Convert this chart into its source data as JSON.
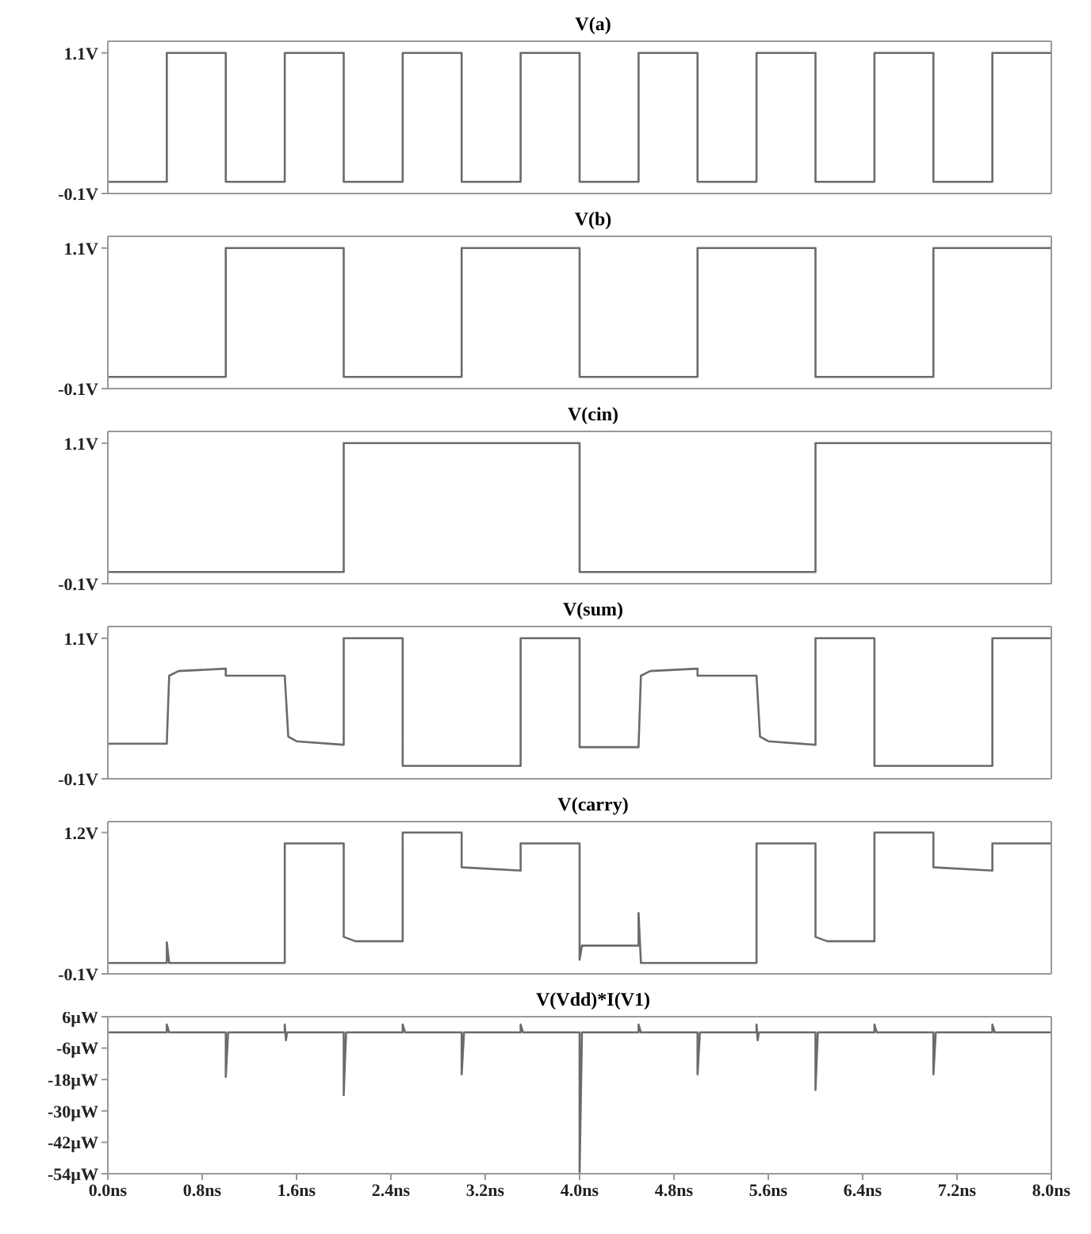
{
  "chart_data": [
    {
      "type": "line",
      "title": "V(a)",
      "xlim": [
        0,
        8
      ],
      "ylim": [
        -0.1,
        1.2
      ],
      "yticks": [
        {
          "value": 1.1,
          "label": "1.1V"
        },
        {
          "value": -0.1,
          "label": "-0.1V"
        }
      ],
      "tick_labels": "y",
      "series": [
        {
          "color": "#6b6b6b",
          "x": [
            0,
            0.5,
            0.5,
            1,
            1,
            1.5,
            1.5,
            2,
            2,
            2.5,
            2.5,
            3,
            3,
            3.5,
            3.5,
            4,
            4,
            4.5,
            4.5,
            5,
            5,
            5.5,
            5.5,
            6,
            6,
            6.5,
            6.5,
            7,
            7,
            7.5,
            7.5,
            8
          ],
          "values": [
            0,
            0,
            1.1,
            1.1,
            0,
            0,
            1.1,
            1.1,
            0,
            0,
            1.1,
            1.1,
            0,
            0,
            1.1,
            1.1,
            0,
            0,
            1.1,
            1.1,
            0,
            0,
            1.1,
            1.1,
            0,
            0,
            1.1,
            1.1,
            0,
            0,
            1.1,
            1.1
          ]
        }
      ]
    },
    {
      "type": "line",
      "title": "V(b)",
      "xlim": [
        0,
        8
      ],
      "ylim": [
        -0.1,
        1.2
      ],
      "yticks": [
        {
          "value": 1.1,
          "label": "1.1V"
        },
        {
          "value": -0.1,
          "label": "-0.1V"
        }
      ],
      "tick_labels": "y",
      "series": [
        {
          "color": "#6b6b6b",
          "x": [
            0,
            1,
            1,
            2,
            2,
            3,
            3,
            4,
            4,
            5,
            5,
            6,
            6,
            7,
            7,
            8
          ],
          "values": [
            0,
            0,
            1.1,
            1.1,
            0,
            0,
            1.1,
            1.1,
            0,
            0,
            1.1,
            1.1,
            0,
            0,
            1.1,
            1.1
          ]
        }
      ]
    },
    {
      "type": "line",
      "title": "V(cin)",
      "xlim": [
        0,
        8
      ],
      "ylim": [
        -0.1,
        1.2
      ],
      "yticks": [
        {
          "value": 1.1,
          "label": "1.1V"
        },
        {
          "value": -0.1,
          "label": "-0.1V"
        }
      ],
      "tick_labels": "y",
      "series": [
        {
          "color": "#6b6b6b",
          "x": [
            0,
            2,
            2,
            4,
            4,
            6,
            6,
            8
          ],
          "values": [
            0,
            0,
            1.1,
            1.1,
            0,
            0,
            1.1,
            1.1
          ]
        }
      ]
    },
    {
      "type": "line",
      "title": "V(sum)",
      "xlim": [
        0,
        8
      ],
      "ylim": [
        -0.1,
        1.2
      ],
      "yticks": [
        {
          "value": 1.1,
          "label": "1.1V"
        },
        {
          "value": -0.1,
          "label": "-0.1V"
        }
      ],
      "tick_labels": "y",
      "series": [
        {
          "color": "#6b6b6b",
          "x": [
            0,
            0.5,
            0.52,
            0.6,
            1.0,
            1.0,
            1.5,
            1.53,
            1.6,
            2.0,
            2.0,
            2.5,
            2.5,
            3.5,
            3.5,
            4.0,
            4.0,
            4.5,
            4.52,
            4.6,
            5.0,
            5.0,
            5.5,
            5.53,
            5.6,
            6.0,
            6.0,
            6.5,
            6.5,
            7.5,
            7.5,
            8
          ],
          "values": [
            0.2,
            0.2,
            0.78,
            0.82,
            0.84,
            0.78,
            0.78,
            0.26,
            0.22,
            0.19,
            1.1,
            1.1,
            0.01,
            0.01,
            1.1,
            1.1,
            0.17,
            0.17,
            0.78,
            0.82,
            0.84,
            0.78,
            0.78,
            0.26,
            0.22,
            0.19,
            1.1,
            1.1,
            0.01,
            0.01,
            1.1,
            1.1
          ]
        }
      ]
    },
    {
      "type": "line",
      "title": "V(carry)",
      "xlim": [
        0,
        8
      ],
      "ylim": [
        -0.1,
        1.3
      ],
      "yticks": [
        {
          "value": 1.2,
          "label": "1.2V"
        },
        {
          "value": -0.1,
          "label": "-0.1V"
        }
      ],
      "tick_labels": "y",
      "series": [
        {
          "color": "#6b6b6b",
          "x": [
            0,
            0.5,
            0.5,
            0.52,
            1.5,
            1.5,
            2.0,
            2.0,
            2.1,
            2.5,
            2.5,
            3.0,
            3.0,
            3.5,
            3.5,
            4.0,
            4.0,
            4.02,
            4.5,
            4.5,
            4.52,
            5.5,
            5.5,
            6.0,
            6.0,
            6.1,
            6.5,
            6.5,
            7.0,
            7.0,
            7.5,
            7.5,
            8
          ],
          "values": [
            0,
            0,
            0.19,
            0,
            0,
            1.1,
            1.1,
            0.24,
            0.2,
            0.2,
            1.2,
            1.2,
            0.88,
            0.85,
            1.1,
            1.1,
            0.03,
            0.16,
            0.16,
            0.46,
            0,
            0,
            1.1,
            1.1,
            0.24,
            0.2,
            0.2,
            1.2,
            1.2,
            0.88,
            0.85,
            1.1,
            1.1
          ]
        }
      ]
    },
    {
      "type": "line",
      "title": "V(Vdd)*I(V1)",
      "xlim": [
        0,
        8
      ],
      "xticks": [
        {
          "value": 0,
          "label": "0.0ns"
        },
        {
          "value": 0.8,
          "label": "0.8ns"
        },
        {
          "value": 1.6,
          "label": "1.6ns"
        },
        {
          "value": 2.4,
          "label": "2.4ns"
        },
        {
          "value": 3.2,
          "label": "3.2ns"
        },
        {
          "value": 4,
          "label": "4.0ns"
        },
        {
          "value": 4.8,
          "label": "4.8ns"
        },
        {
          "value": 5.6,
          "label": "5.6ns"
        },
        {
          "value": 6.4,
          "label": "6.4ns"
        },
        {
          "value": 7.2,
          "label": "7.2ns"
        },
        {
          "value": 8,
          "label": "8.0ns"
        }
      ],
      "ylim": [
        -54,
        6
      ],
      "yticks": [
        {
          "value": 6,
          "label": "6µW"
        },
        {
          "value": -6,
          "label": "-6µW"
        },
        {
          "value": -18,
          "label": "-18µW"
        },
        {
          "value": -30,
          "label": "-30µW"
        },
        {
          "value": -42,
          "label": "-42µW"
        },
        {
          "value": -54,
          "label": "-54µW"
        }
      ],
      "series": [
        {
          "color": "#6b6b6b",
          "x": [
            0,
            0.5,
            0.5,
            0.52,
            1.0,
            1.0,
            1.02,
            1.5,
            1.5,
            1.51,
            1.52,
            2.0,
            2.0,
            2.02,
            2.5,
            2.5,
            2.52,
            3.0,
            3.0,
            3.02,
            3.5,
            3.5,
            3.52,
            4.0,
            4.0,
            4.02,
            4.5,
            4.5,
            4.52,
            5.0,
            5.0,
            5.02,
            5.5,
            5.5,
            5.51,
            5.52,
            6.0,
            6.0,
            6.02,
            6.5,
            6.5,
            6.52,
            7.0,
            7.0,
            7.02,
            7.5,
            7.5,
            7.52,
            8
          ],
          "values": [
            0,
            0,
            3,
            0,
            0,
            -17,
            0,
            0,
            3,
            -3,
            0,
            0,
            -24,
            0,
            0,
            3,
            0,
            0,
            -16,
            0,
            0,
            3,
            0,
            0,
            -54,
            0,
            0,
            3,
            0,
            0,
            -16,
            0,
            0,
            3,
            -3,
            0,
            0,
            -22,
            0,
            0,
            3,
            0,
            0,
            -16,
            0,
            0,
            3,
            0,
            0
          ]
        }
      ]
    }
  ]
}
